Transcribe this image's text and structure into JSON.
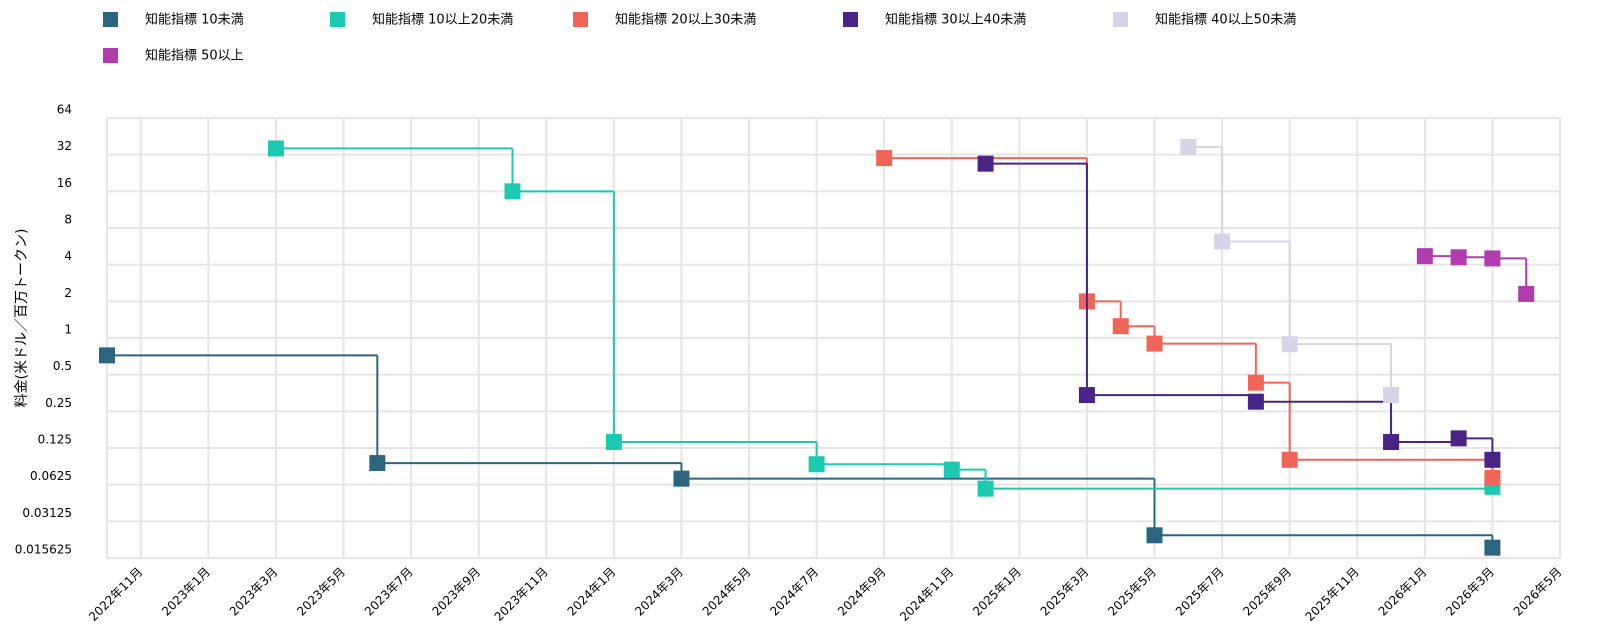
{
  "chart_data": {
    "type": "step",
    "y_label": "料金(米ドル／百万トークン)",
    "ylog": true,
    "grid": true,
    "legend": "top-left",
    "xlim": [
      "2022-10",
      "2026-05"
    ],
    "xticks": [
      {
        "value": "2022-11",
        "label": "2022年11月"
      },
      {
        "value": "2023-01",
        "label": "2023年1月"
      },
      {
        "value": "2023-03",
        "label": "2023年3月"
      },
      {
        "value": "2023-05",
        "label": "2023年5月"
      },
      {
        "value": "2023-07",
        "label": "2023年7月"
      },
      {
        "value": "2023-09",
        "label": "2023年9月"
      },
      {
        "value": "2023-11",
        "label": "2023年11月"
      },
      {
        "value": "2024-01",
        "label": "2024年1月"
      },
      {
        "value": "2024-03",
        "label": "2024年3月"
      },
      {
        "value": "2024-05",
        "label": "2024年5月"
      },
      {
        "value": "2024-07",
        "label": "2024年7月"
      },
      {
        "value": "2024-09",
        "label": "2024年9月"
      },
      {
        "value": "2024-11",
        "label": "2024年11月"
      },
      {
        "value": "2025-01",
        "label": "2025年1月"
      },
      {
        "value": "2025-03",
        "label": "2025年3月"
      },
      {
        "value": "2025-05",
        "label": "2025年5月"
      },
      {
        "value": "2025-07",
        "label": "2025年7月"
      },
      {
        "value": "2025-09",
        "label": "2025年9月"
      },
      {
        "value": "2025-11",
        "label": "2025年11月"
      },
      {
        "value": "2026-01",
        "label": "2026年1月"
      },
      {
        "value": "2026-03",
        "label": "2026年3月"
      },
      {
        "value": "2026-05",
        "label": "2026年5月"
      }
    ],
    "ylim": [
      0.015625,
      64
    ],
    "yticks": [
      64,
      32,
      16,
      8,
      4,
      2,
      1,
      0.5,
      0.25,
      0.125,
      0.0625,
      0.03125,
      0.015625
    ],
    "series": [
      {
        "name": "知能指標 10未満",
        "color": "#2b6580",
        "x": [
          "2022-10",
          "2023-06",
          "2024-03",
          "2025-05",
          "2026-03"
        ],
        "values": [
          0.72,
          0.094,
          0.07,
          0.024,
          0.019
        ]
      },
      {
        "name": "知能指標 10以上20未満",
        "color": "#1dc9b1",
        "x": [
          "2023-03",
          "2023-10",
          "2024-01",
          "2024-07",
          "2024-11",
          "2024-12",
          "2026-03"
        ],
        "values": [
          36,
          16,
          0.14,
          0.092,
          0.083,
          0.058,
          0.06
        ]
      },
      {
        "name": "知能指標 20以上30未満",
        "color": "#f06558",
        "x": [
          "2024-09",
          "2025-03",
          "2025-04",
          "2025-05",
          "2025-08",
          "2025-09",
          "2026-03"
        ],
        "values": [
          30,
          2,
          1.25,
          0.9,
          0.43,
          0.1,
          0.071
        ]
      },
      {
        "name": "知能指標 30以上40未満",
        "color": "#4a2386",
        "x": [
          "2024-12",
          "2025-03",
          "2025-08",
          "2025-12",
          "2026-02",
          "2026-03"
        ],
        "values": [
          27,
          0.34,
          0.3,
          0.14,
          0.15,
          0.1
        ]
      },
      {
        "name": "知能指標 40以上50未満",
        "color": "#d8d4e8",
        "x": [
          "2025-06",
          "2025-07",
          "2025-09",
          "2025-12"
        ],
        "values": [
          37,
          6.2,
          0.89,
          0.34
        ]
      },
      {
        "name": "知能指標 50以上",
        "color": "#b03cae",
        "x": [
          "2026-01",
          "2026-02",
          "2026-03",
          "2026-04"
        ],
        "values": [
          4.7,
          4.6,
          4.5,
          2.3
        ]
      }
    ]
  }
}
